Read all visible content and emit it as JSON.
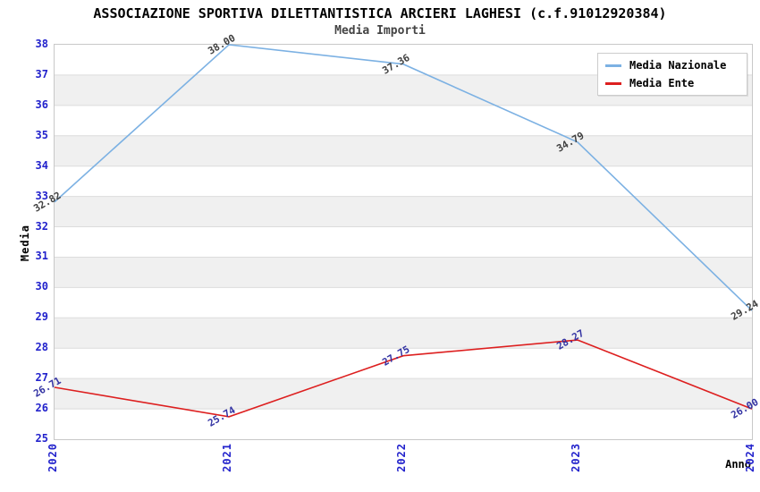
{
  "header": {
    "title": "ASSOCIAZIONE SPORTIVA DILETTANTISTICA ARCIERI LAGHESI (c.f.91012920384)",
    "subtitle": "Media Importi"
  },
  "colors": {
    "axis_tick_text": "#2222cc",
    "band_gray": "#f0f0f0",
    "band_white": "#ffffff",
    "gridline": "#dcdcdc",
    "plot_border": "#c8c8c8",
    "title_text": "#000000",
    "subtitle_text": "#444444"
  },
  "chart_data": {
    "type": "line",
    "title": "ASSOCIAZIONE SPORTIVA DILETTANTISTICA ARCIERI LAGHESI (c.f.91012920384)",
    "subtitle": "Media Importi",
    "xlabel": "Anno",
    "ylabel": "Media",
    "x": [
      "2020",
      "2021",
      "2022",
      "2023",
      "2024"
    ],
    "ylim": [
      25,
      38
    ],
    "ytick_step": 1,
    "grid": "horizontal-bands-alternating",
    "legend_position": "top-right",
    "series": [
      {
        "name": "Media Nazionale",
        "color": "#7cb1e3",
        "label_color": "#404040",
        "values": [
          32.82,
          38.0,
          37.36,
          34.79,
          29.24
        ],
        "labels": [
          "32.82",
          "38.00",
          "37.36",
          "34.79",
          "29.24"
        ]
      },
      {
        "name": "Media Ente",
        "color": "#dd1f1f",
        "label_color": "#3333a3",
        "values": [
          26.71,
          25.74,
          27.75,
          28.27,
          26.0
        ],
        "labels": [
          "26.71",
          "25.74",
          "27.75",
          "28.27",
          "26.00"
        ]
      }
    ]
  }
}
